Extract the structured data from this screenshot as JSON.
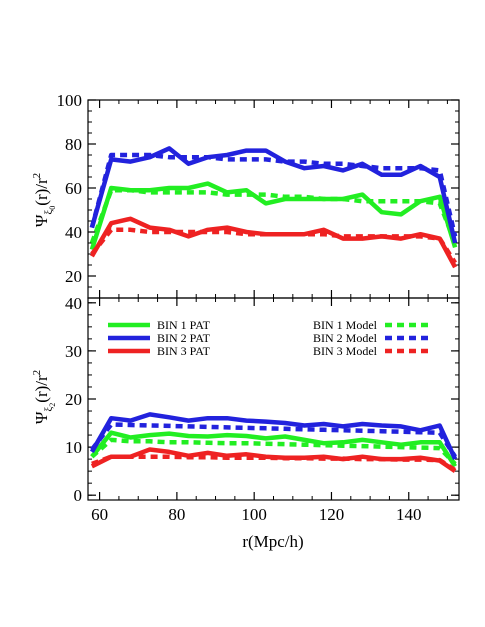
{
  "chart_data": [
    {
      "type": "line",
      "panel": "top",
      "ylabel": "Ψξ₀(r)/r²",
      "ylabel_parts": {
        "main": "Ψ",
        "sub": "ξ",
        "subsub": "0",
        "rest": "(r)/r",
        "sup": "2"
      },
      "ylim": [
        10,
        100
      ],
      "yticks": [
        "20",
        "40",
        "60",
        "80",
        "100"
      ],
      "xlim": [
        57,
        153
      ],
      "grid": false,
      "series": [
        {
          "name": "BIN 1 PAT",
          "color": "#22ee22",
          "style": "solid",
          "x": [
            58,
            63,
            68,
            73,
            78,
            83,
            88,
            93,
            98,
            103,
            108,
            113,
            118,
            123,
            128,
            133,
            138,
            143,
            148,
            152
          ],
          "y": [
            32,
            60,
            59,
            59,
            60,
            60,
            62,
            58,
            59,
            53,
            55,
            55,
            55,
            55,
            57,
            49,
            48,
            54,
            56,
            33
          ]
        },
        {
          "name": "BIN 1 Model",
          "color": "#22ee22",
          "style": "dashed",
          "x": [
            58,
            63,
            68,
            73,
            78,
            83,
            88,
            93,
            98,
            103,
            108,
            113,
            118,
            123,
            128,
            133,
            138,
            143,
            148,
            152
          ],
          "y": [
            35,
            59,
            59,
            58,
            58,
            58,
            58,
            57,
            57,
            57,
            56,
            56,
            55,
            55,
            54,
            54,
            54,
            54,
            53,
            35
          ]
        },
        {
          "name": "BIN 2 PAT",
          "color": "#2222dd",
          "style": "solid",
          "x": [
            58,
            63,
            68,
            73,
            78,
            83,
            88,
            93,
            98,
            103,
            108,
            113,
            118,
            123,
            128,
            133,
            138,
            143,
            148,
            152
          ],
          "y": [
            42,
            73,
            72,
            74,
            78,
            71,
            74,
            75,
            77,
            77,
            72,
            69,
            70,
            68,
            71,
            66,
            66,
            70,
            65,
            35
          ]
        },
        {
          "name": "BIN 2 Model",
          "color": "#2222dd",
          "style": "dashed",
          "x": [
            58,
            63,
            68,
            73,
            78,
            83,
            88,
            93,
            98,
            103,
            108,
            113,
            118,
            123,
            128,
            133,
            138,
            143,
            148,
            152
          ],
          "y": [
            42,
            75,
            75,
            75,
            74,
            74,
            74,
            73,
            73,
            73,
            72,
            72,
            71,
            71,
            70,
            69,
            69,
            69,
            68,
            38
          ]
        },
        {
          "name": "BIN 3 PAT",
          "color": "#ee2222",
          "style": "solid",
          "x": [
            58,
            63,
            68,
            73,
            78,
            83,
            88,
            93,
            98,
            103,
            108,
            113,
            118,
            123,
            128,
            133,
            138,
            143,
            148,
            152
          ],
          "y": [
            29,
            44,
            46,
            42,
            41,
            38,
            41,
            42,
            40,
            39,
            39,
            39,
            41,
            37,
            37,
            38,
            37,
            39,
            37,
            24
          ]
        },
        {
          "name": "BIN 3 Model",
          "color": "#ee2222",
          "style": "dashed",
          "x": [
            58,
            63,
            68,
            73,
            78,
            83,
            88,
            93,
            98,
            103,
            108,
            113,
            118,
            123,
            128,
            133,
            138,
            143,
            148,
            152
          ],
          "y": [
            30,
            41,
            41,
            40,
            40,
            40,
            40,
            40,
            39,
            39,
            39,
            39,
            39,
            38,
            38,
            38,
            38,
            38,
            37,
            26
          ]
        }
      ]
    },
    {
      "type": "line",
      "panel": "bottom",
      "xlabel": "r(Mpc/h)",
      "ylabel": "Ψξ₂(r)/r²",
      "ylabel_parts": {
        "main": "Ψ",
        "sub": "ξ",
        "subsub": "2",
        "rest": "(r)/r",
        "sup": "2"
      },
      "ylim": [
        -1,
        41
      ],
      "yticks": [
        "0",
        "10",
        "20",
        "30",
        "40"
      ],
      "xlim": [
        57,
        153
      ],
      "xticks": [
        "60",
        "80",
        "100",
        "120",
        "140"
      ],
      "grid": false,
      "legend_placement": "top",
      "series": [
        {
          "name": "BIN 1 PAT",
          "color": "#22ee22",
          "style": "solid",
          "x": [
            58,
            63,
            68,
            73,
            78,
            83,
            88,
            93,
            98,
            103,
            108,
            113,
            118,
            123,
            128,
            133,
            138,
            143,
            148,
            152
          ],
          "y": [
            8,
            13,
            12,
            12.5,
            12.8,
            12.3,
            12.2,
            12.5,
            12.3,
            11.8,
            12.2,
            11.5,
            10.8,
            11,
            11.5,
            11,
            10.5,
            11,
            11,
            6
          ]
        },
        {
          "name": "BIN 1 Model",
          "color": "#22ee22",
          "style": "dashed",
          "x": [
            58,
            63,
            68,
            73,
            78,
            83,
            88,
            93,
            98,
            103,
            108,
            113,
            118,
            123,
            128,
            133,
            138,
            143,
            148,
            152
          ],
          "y": [
            8,
            11.5,
            11.2,
            11.2,
            11,
            11,
            10.9,
            10.8,
            10.8,
            10.7,
            10.6,
            10.5,
            10.4,
            10.3,
            10.2,
            10.1,
            10,
            9.9,
            9.8,
            6.5
          ]
        },
        {
          "name": "BIN 2 PAT",
          "color": "#2222dd",
          "style": "solid",
          "x": [
            58,
            63,
            68,
            73,
            78,
            83,
            88,
            93,
            98,
            103,
            108,
            113,
            118,
            123,
            128,
            133,
            138,
            143,
            148,
            152
          ],
          "y": [
            9,
            16,
            15.5,
            16.8,
            16.2,
            15.5,
            16,
            16,
            15.5,
            15.3,
            15,
            14.5,
            14.8,
            14.3,
            14.8,
            14.5,
            14.3,
            13.5,
            14.5,
            7.5
          ]
        },
        {
          "name": "BIN 2 Model",
          "color": "#2222dd",
          "style": "dashed",
          "x": [
            58,
            63,
            68,
            73,
            78,
            83,
            88,
            93,
            98,
            103,
            108,
            113,
            118,
            123,
            128,
            133,
            138,
            143,
            148,
            152
          ],
          "y": [
            9.5,
            14.7,
            14.6,
            14.5,
            14.4,
            14.3,
            14.2,
            14.1,
            14,
            13.9,
            13.8,
            13.7,
            13.6,
            13.5,
            13.4,
            13.3,
            13.2,
            13.1,
            13,
            8
          ]
        },
        {
          "name": "BIN 3 PAT",
          "color": "#ee2222",
          "style": "solid",
          "x": [
            58,
            63,
            68,
            73,
            78,
            83,
            88,
            93,
            98,
            103,
            108,
            113,
            118,
            123,
            128,
            133,
            138,
            143,
            148,
            152
          ],
          "y": [
            6,
            8,
            8,
            9.5,
            9,
            8.2,
            8.8,
            8.2,
            8.5,
            8,
            7.8,
            7.8,
            8,
            7.5,
            8,
            7.5,
            7.5,
            7.8,
            7.2,
            5
          ]
        },
        {
          "name": "BIN 3 Model",
          "color": "#ee2222",
          "style": "dashed",
          "x": [
            58,
            63,
            68,
            73,
            78,
            83,
            88,
            93,
            98,
            103,
            108,
            113,
            118,
            123,
            128,
            133,
            138,
            143,
            148,
            152
          ],
          "y": [
            6.5,
            8,
            8,
            8,
            8,
            7.9,
            7.9,
            7.8,
            7.8,
            7.8,
            7.7,
            7.7,
            7.6,
            7.6,
            7.5,
            7.5,
            7.4,
            7.4,
            7.3,
            5.2
          ]
        }
      ]
    }
  ],
  "legend": {
    "left": [
      "BIN 1 PAT",
      "BIN 2 PAT",
      "BIN 3 PAT"
    ],
    "right": [
      "BIN 1 Model",
      "BIN 2 Model",
      "BIN 3 Model"
    ]
  }
}
